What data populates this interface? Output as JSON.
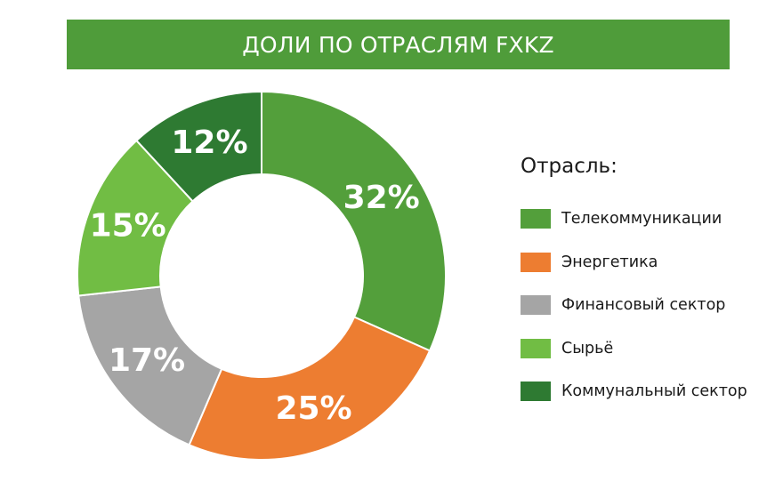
{
  "title": "ДОЛИ ПО ОТРАСЛЯМ FXKZ",
  "colors": {
    "banner": "#4f9c3a"
  },
  "legend": {
    "title": "Отрасль:"
  },
  "chart_data": {
    "type": "pie",
    "variant": "donut",
    "title": "ДОЛИ ПО ОТРАСЛЯМ FXKZ",
    "legend_title": "Отрасль:",
    "legend_position": "right",
    "start": "12 o'clock",
    "direction": "clockwise",
    "unit": "%",
    "series": [
      {
        "name": "Телекоммуникации",
        "value": 32,
        "label": "32%",
        "color": "#539f3b"
      },
      {
        "name": "Энергетика",
        "value": 25,
        "label": "25%",
        "color": "#ed7d31"
      },
      {
        "name": "Финансовый сектор",
        "value": 17,
        "label": "17%",
        "color": "#a5a5a5"
      },
      {
        "name": "Сырьё",
        "value": 15,
        "label": "15%",
        "color": "#71bd44"
      },
      {
        "name": "Коммунальный сектор",
        "value": 12,
        "label": "12%",
        "color": "#2e7a32"
      }
    ]
  }
}
